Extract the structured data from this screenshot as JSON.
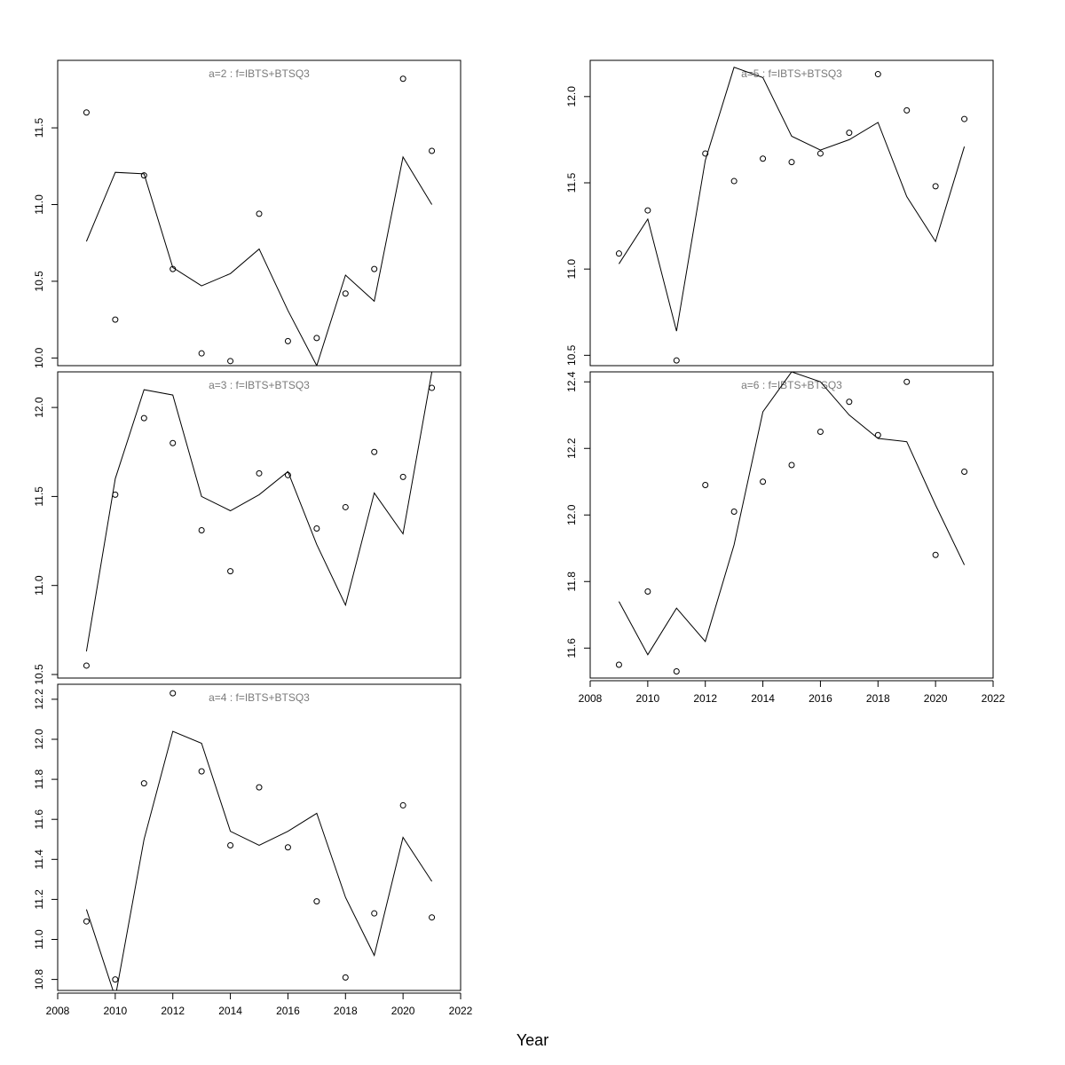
{
  "xlabel": "Year",
  "chart_data": [
    {
      "type": "scatter",
      "title": "a=2 : f=IBTS+BTSQ3",
      "x": [
        2009,
        2010,
        2011,
        2012,
        2013,
        2014,
        2015,
        2016,
        2017,
        2018,
        2019,
        2020,
        2021
      ],
      "series": [
        {
          "kind": "points",
          "values": [
            11.6,
            10.25,
            11.19,
            10.58,
            10.03,
            9.98,
            10.94,
            10.11,
            10.13,
            10.42,
            10.58,
            11.82,
            11.35
          ]
        },
        {
          "kind": "line",
          "values": [
            10.76,
            11.21,
            11.2,
            10.59,
            10.47,
            10.55,
            10.71,
            10.31,
            9.95,
            10.54,
            10.37,
            11.31,
            11.0
          ]
        }
      ],
      "xlim": [
        2008,
        2022
      ],
      "ylim": [
        9.95,
        11.94
      ],
      "yticks": [
        10.0,
        10.5,
        11.0,
        11.5
      ],
      "ytick_labels": [
        "10.0",
        "10.5",
        "11.0",
        "11.5"
      ],
      "xticks": [],
      "xtick_labels": []
    },
    {
      "type": "scatter",
      "title": "a=3 : f=IBTS+BTSQ3",
      "x": [
        2009,
        2010,
        2011,
        2012,
        2013,
        2014,
        2015,
        2016,
        2017,
        2018,
        2019,
        2020,
        2021
      ],
      "series": [
        {
          "kind": "points",
          "values": [
            10.55,
            11.51,
            11.94,
            11.8,
            11.31,
            11.08,
            11.63,
            11.62,
            11.32,
            11.44,
            11.75,
            11.61,
            12.11
          ]
        },
        {
          "kind": "line",
          "values": [
            10.63,
            11.6,
            12.1,
            12.07,
            11.5,
            11.42,
            11.51,
            11.64,
            11.23,
            10.89,
            11.52,
            11.29,
            12.2
          ]
        }
      ],
      "xlim": [
        2008,
        2022
      ],
      "ylim": [
        10.48,
        12.2
      ],
      "yticks": [
        10.5,
        11.0,
        11.5,
        12.0
      ],
      "ytick_labels": [
        "10.5",
        "11.0",
        "11.5",
        "12.0"
      ],
      "xticks": [],
      "xtick_labels": []
    },
    {
      "type": "scatter",
      "title": "a=4 : f=IBTS+BTSQ3",
      "x": [
        2009,
        2010,
        2011,
        2012,
        2013,
        2014,
        2015,
        2016,
        2017,
        2018,
        2019,
        2020,
        2021
      ],
      "series": [
        {
          "kind": "points",
          "values": [
            11.09,
            10.8,
            11.78,
            12.23,
            11.84,
            11.47,
            11.76,
            11.46,
            11.19,
            10.81,
            11.13,
            11.67,
            11.11
          ]
        },
        {
          "kind": "line",
          "values": [
            11.15,
            10.71,
            11.5,
            12.04,
            11.98,
            11.54,
            11.47,
            11.54,
            11.63,
            11.21,
            10.92,
            11.51,
            11.29
          ]
        }
      ],
      "xlim": [
        2008,
        2022
      ],
      "ylim": [
        10.745,
        12.275
      ],
      "yticks": [
        10.8,
        11.0,
        11.2,
        11.4,
        11.6,
        11.8,
        12.0,
        12.2
      ],
      "ytick_labels": [
        "10.8",
        "11.0",
        "11.2",
        "11.4",
        "11.6",
        "11.8",
        "12.0",
        "12.2"
      ],
      "xticks": [
        2008,
        2010,
        2012,
        2014,
        2016,
        2018,
        2020,
        2022
      ],
      "xtick_labels": [
        "2008",
        "2010",
        "2012",
        "2014",
        "2016",
        "2018",
        "2020",
        "2022"
      ]
    },
    {
      "type": "scatter",
      "title": "a=5 : f=IBTS+BTSQ3",
      "x": [
        2009,
        2010,
        2011,
        2012,
        2013,
        2014,
        2015,
        2016,
        2017,
        2018,
        2019,
        2020,
        2021
      ],
      "series": [
        {
          "kind": "points",
          "values": [
            11.09,
            11.34,
            10.47,
            11.67,
            11.51,
            11.64,
            11.62,
            11.67,
            11.79,
            12.13,
            11.92,
            11.48,
            11.87
          ]
        },
        {
          "kind": "line",
          "values": [
            11.03,
            11.29,
            10.64,
            11.63,
            12.17,
            12.11,
            11.77,
            11.69,
            11.75,
            11.85,
            11.42,
            11.16,
            11.71
          ]
        }
      ],
      "xlim": [
        2008,
        2022
      ],
      "ylim": [
        10.44,
        12.21
      ],
      "yticks": [
        10.5,
        11.0,
        11.5,
        12.0
      ],
      "ytick_labels": [
        "10.5",
        "11.0",
        "11.5",
        "12.0"
      ],
      "xticks": [],
      "xtick_labels": []
    },
    {
      "type": "scatter",
      "title": "a=6 : f=IBTS+BTSQ3",
      "x": [
        2009,
        2010,
        2011,
        2012,
        2013,
        2014,
        2015,
        2016,
        2017,
        2018,
        2019,
        2020,
        2021
      ],
      "series": [
        {
          "kind": "points",
          "values": [
            11.55,
            11.77,
            11.53,
            12.09,
            12.01,
            12.1,
            12.15,
            12.25,
            12.34,
            12.24,
            12.4,
            11.88,
            12.13
          ]
        },
        {
          "kind": "line",
          "values": [
            11.74,
            11.58,
            11.72,
            11.62,
            11.91,
            12.31,
            12.43,
            12.4,
            12.3,
            12.23,
            12.22,
            12.03,
            11.85
          ]
        }
      ],
      "xlim": [
        2008,
        2022
      ],
      "ylim": [
        11.51,
        12.43
      ],
      "yticks": [
        11.6,
        11.8,
        12.0,
        12.2,
        12.4
      ],
      "ytick_labels": [
        "11.6",
        "11.8",
        "12.0",
        "12.2",
        "12.4"
      ],
      "xticks": [
        2008,
        2010,
        2012,
        2014,
        2016,
        2018,
        2020,
        2022
      ],
      "xtick_labels": [
        "2008",
        "2010",
        "2012",
        "2014",
        "2016",
        "2018",
        "2020",
        "2022"
      ]
    }
  ]
}
